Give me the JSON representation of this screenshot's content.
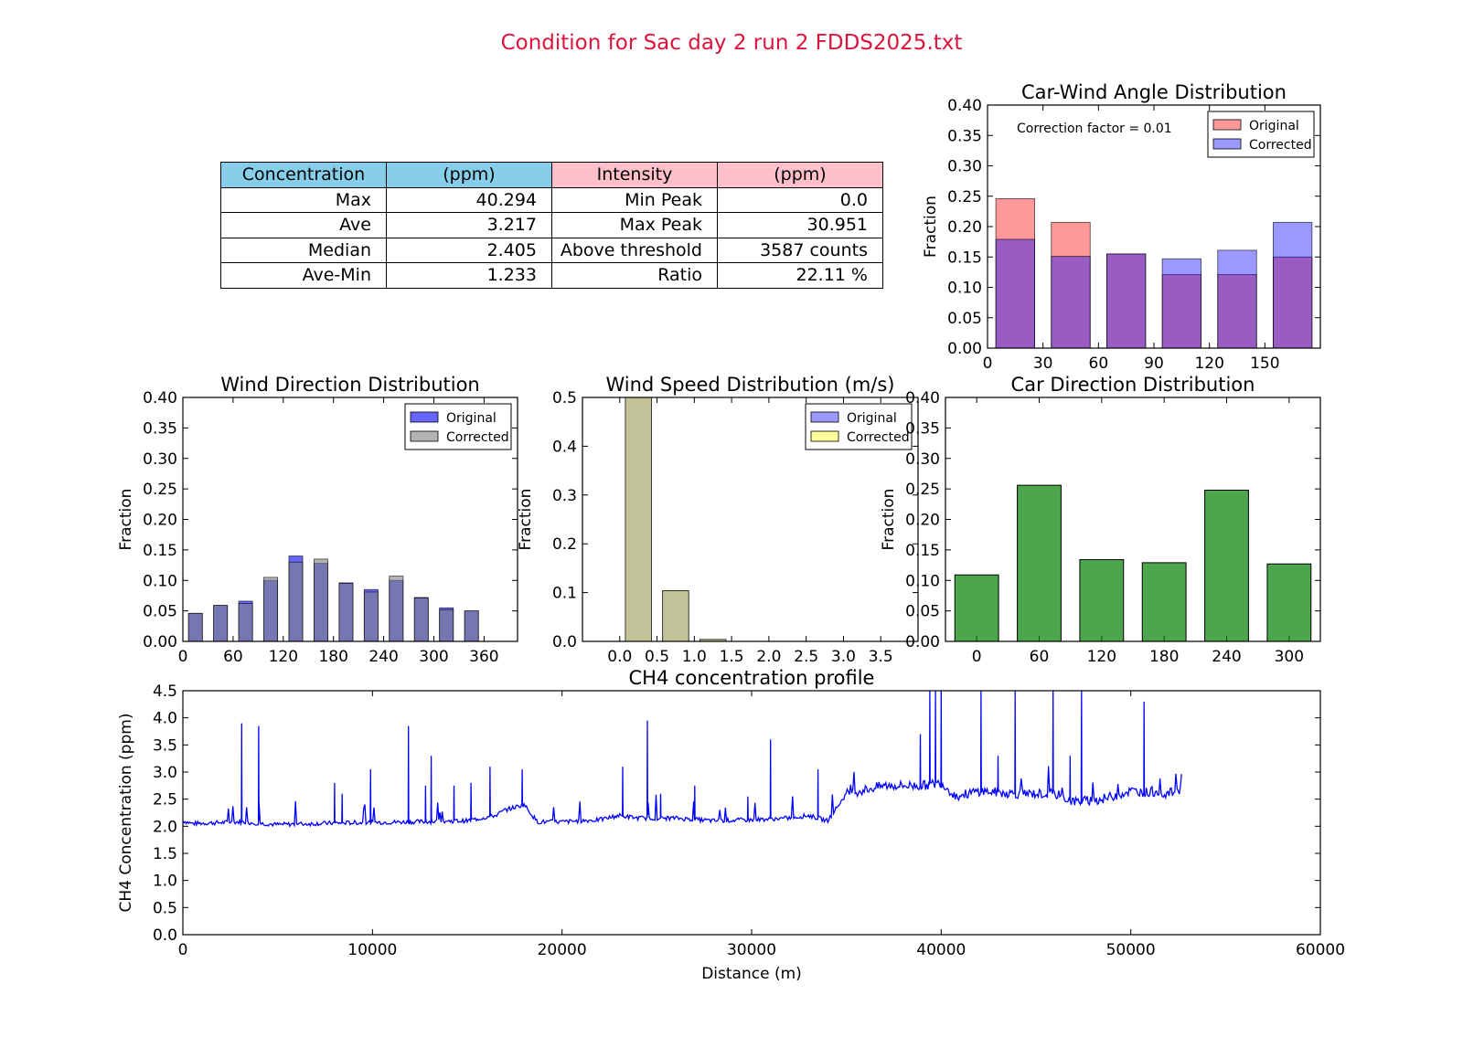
{
  "suptitle": "Condition for Sac day 2 run 2 FDDS2025.txt",
  "stats_table": {
    "header": [
      "Concentration",
      "(ppm)",
      "Intensity",
      "(ppm)"
    ],
    "header_colors": [
      "#87ceeb",
      "#87ceeb",
      "#ffc0cb",
      "#ffc0cb"
    ],
    "rows": [
      [
        "Max",
        "40.294",
        "Min Peak",
        "0.0"
      ],
      [
        "Ave",
        "3.217",
        "Max Peak",
        "30.951"
      ],
      [
        "Median",
        "2.405",
        "Above threshold",
        "3587 counts"
      ],
      [
        "Ave-Min",
        "1.233",
        "Ratio",
        "22.11 %"
      ]
    ]
  },
  "chart_data": [
    {
      "id": "carwind",
      "type": "bar",
      "title": "Car-Wind Angle Distribution",
      "xlabel": "",
      "ylabel": "Fraction",
      "xlim": [
        0,
        180
      ],
      "ylim": [
        0,
        0.4
      ],
      "xticks": [
        0,
        30,
        60,
        90,
        120,
        150
      ],
      "yticks": [
        0.0,
        0.05,
        0.1,
        0.15,
        0.2,
        0.25,
        0.3,
        0.35,
        0.4
      ],
      "bin_edges": [
        0,
        30,
        60,
        90,
        120,
        150,
        180
      ],
      "annotation": "Correction factor = 0.01",
      "legend": "top-right",
      "series": [
        {
          "name": "Original",
          "color": "#ff0000",
          "alpha": 0.4,
          "values": [
            0.246,
            0.207,
            0.155,
            0.121,
            0.121,
            0.15
          ]
        },
        {
          "name": "Corrected",
          "color": "#0000ff",
          "alpha": 0.4,
          "values": [
            0.179,
            0.151,
            0.155,
            0.147,
            0.161,
            0.207
          ]
        }
      ]
    },
    {
      "id": "winddir",
      "type": "bar",
      "title": "Wind Direction Distribution",
      "xlabel": "",
      "ylabel": "Fraction",
      "xlim": [
        0,
        400
      ],
      "ylim": [
        0,
        0.4
      ],
      "xticks": [
        0,
        60,
        120,
        180,
        240,
        300,
        360
      ],
      "yticks": [
        0.0,
        0.05,
        0.1,
        0.15,
        0.2,
        0.25,
        0.3,
        0.35,
        0.4
      ],
      "bin_edges": [
        0,
        30,
        60,
        90,
        120,
        150,
        180,
        210,
        240,
        270,
        300,
        330,
        360
      ],
      "legend": "top-right",
      "series": [
        {
          "name": "Original",
          "color": "#0000ff",
          "alpha": 0.6,
          "values": [
            0.046,
            0.059,
            0.066,
            0.1,
            0.14,
            0.128,
            0.096,
            0.085,
            0.1,
            0.072,
            0.055,
            0.05
          ]
        },
        {
          "name": "Corrected",
          "color": "#808080",
          "alpha": 0.6,
          "values": [
            0.046,
            0.059,
            0.062,
            0.105,
            0.13,
            0.135,
            0.095,
            0.081,
            0.107,
            0.071,
            0.052,
            0.05
          ]
        }
      ]
    },
    {
      "id": "windspeed",
      "type": "bar",
      "title": "Wind Speed Distribution (m/s)",
      "xlabel": "",
      "ylabel": "Fraction",
      "xlim": [
        -0.5,
        4.0
      ],
      "ylim": [
        0,
        0.5
      ],
      "xticks": [
        0.0,
        0.5,
        1.0,
        1.5,
        2.0,
        2.5,
        3.0,
        3.5
      ],
      "yticks": [
        0.0,
        0.1,
        0.2,
        0.3,
        0.4,
        0.5
      ],
      "bin_edges": [
        0.0,
        0.5,
        1.0,
        1.5,
        2.0,
        2.5,
        3.0,
        3.5,
        4.0
      ],
      "legend": "top-right",
      "series": [
        {
          "name": "Original",
          "color": "#0000ff",
          "alpha": 0.4,
          "values": [
            0.5,
            0.104,
            0.004,
            0,
            0,
            0,
            0,
            0
          ]
        },
        {
          "name": "Corrected",
          "color": "#ffff00",
          "alpha": 0.4,
          "values": [
            0.5,
            0.104,
            0.004,
            0,
            0,
            0,
            0,
            0
          ]
        }
      ]
    },
    {
      "id": "cardir",
      "type": "bar",
      "title": "Car Direction Distribution",
      "xlabel": "",
      "ylabel": "Fraction",
      "xlim": [
        -30,
        330
      ],
      "ylim": [
        0,
        0.4
      ],
      "xticks": [
        0,
        60,
        120,
        180,
        240,
        300
      ],
      "yticks": [
        0.0,
        0.05,
        0.1,
        0.15,
        0.2,
        0.25,
        0.3,
        0.35,
        0.4
      ],
      "categories": [
        0,
        60,
        120,
        180,
        240,
        300
      ],
      "color": "#008000",
      "values": [
        0.109,
        0.256,
        0.134,
        0.129,
        0.248,
        0.127
      ]
    },
    {
      "id": "ch4",
      "type": "line",
      "title": "CH4 concentration profile",
      "xlabel": "Distance (m)",
      "ylabel": "CH4 Concentration (ppm)",
      "xlim": [
        0,
        60000
      ],
      "ylim": [
        0,
        4.5
      ],
      "xticks": [
        0,
        10000,
        20000,
        30000,
        40000,
        50000,
        60000
      ],
      "yticks": [
        0.0,
        0.5,
        1.0,
        1.5,
        2.0,
        2.5,
        3.0,
        3.5,
        4.0,
        4.5
      ],
      "color": "#0000ff",
      "baseline": [
        [
          0,
          2.1
        ],
        [
          500,
          2.05
        ],
        [
          3000,
          2.08
        ],
        [
          5000,
          2.03
        ],
        [
          8000,
          2.06
        ],
        [
          12000,
          2.08
        ],
        [
          15000,
          2.1
        ],
        [
          16500,
          2.2
        ],
        [
          17000,
          2.3
        ],
        [
          18000,
          2.4
        ],
        [
          18700,
          2.08
        ],
        [
          20000,
          2.08
        ],
        [
          22000,
          2.12
        ],
        [
          23000,
          2.2
        ],
        [
          24000,
          2.15
        ],
        [
          26000,
          2.15
        ],
        [
          28000,
          2.1
        ],
        [
          30000,
          2.12
        ],
        [
          32000,
          2.15
        ],
        [
          33000,
          2.2
        ],
        [
          34000,
          2.1
        ],
        [
          35000,
          2.6
        ],
        [
          37000,
          2.75
        ],
        [
          39000,
          2.75
        ],
        [
          40000,
          2.8
        ],
        [
          40800,
          2.55
        ],
        [
          42000,
          2.65
        ],
        [
          44000,
          2.6
        ],
        [
          46000,
          2.6
        ],
        [
          47000,
          2.45
        ],
        [
          48500,
          2.5
        ],
        [
          50000,
          2.65
        ],
        [
          52000,
          2.6
        ],
        [
          52700,
          2.7
        ]
      ],
      "peaks": [
        [
          3100,
          3.9
        ],
        [
          4000,
          3.85
        ],
        [
          8000,
          2.8
        ],
        [
          8400,
          2.6
        ],
        [
          9900,
          3.05
        ],
        [
          11900,
          3.85
        ],
        [
          12800,
          2.75
        ],
        [
          13100,
          3.3
        ],
        [
          14300,
          2.75
        ],
        [
          15200,
          2.8
        ],
        [
          16200,
          3.1
        ],
        [
          17900,
          3.05
        ],
        [
          23200,
          3.1
        ],
        [
          24500,
          3.95
        ],
        [
          25200,
          2.6
        ],
        [
          27000,
          2.75
        ],
        [
          29800,
          2.55
        ],
        [
          31000,
          3.6
        ],
        [
          33500,
          3.05
        ],
        [
          38900,
          3.7
        ],
        [
          39400,
          4.5
        ],
        [
          39700,
          4.5
        ],
        [
          40000,
          4.5
        ],
        [
          42100,
          4.5
        ],
        [
          43000,
          3.3
        ],
        [
          43900,
          4.5
        ],
        [
          45900,
          4.5
        ],
        [
          46800,
          3.3
        ],
        [
          47400,
          4.5
        ],
        [
          50700,
          4.3
        ]
      ]
    }
  ]
}
